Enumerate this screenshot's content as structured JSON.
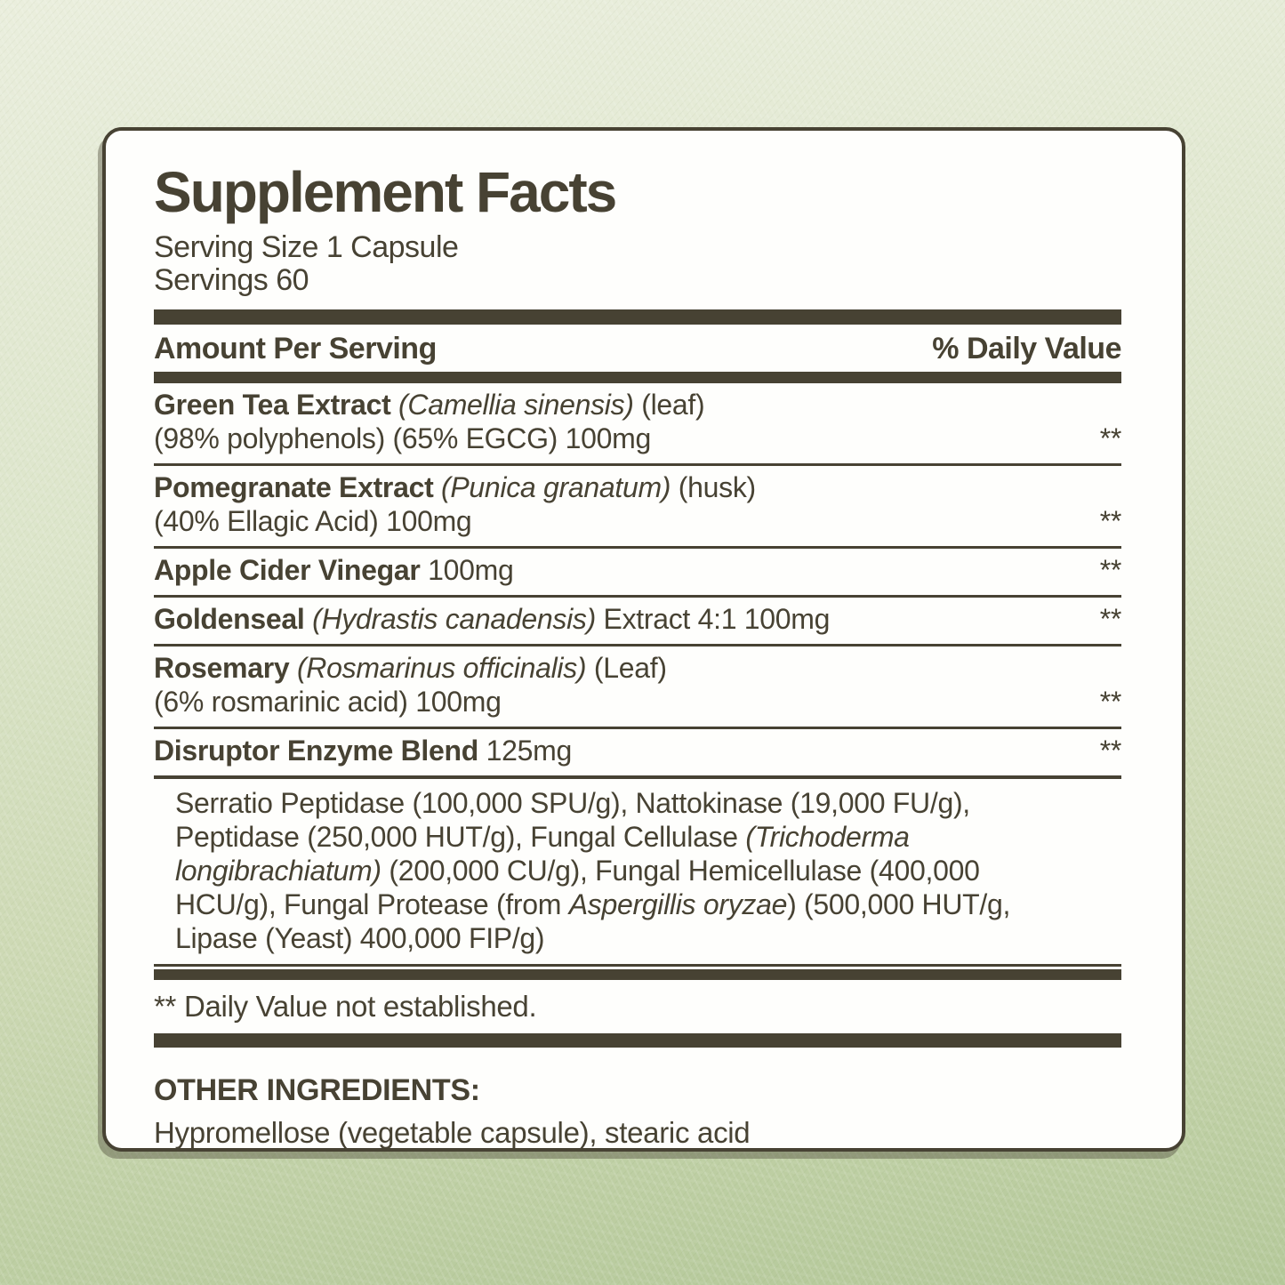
{
  "colors": {
    "ink": "#474233",
    "card_background": "#fefefc",
    "background_top": "#eaeedd",
    "background_bottom": "#b4c899"
  },
  "panel": {
    "title": "Supplement Facts",
    "serving_size": "Serving Size 1 Capsule",
    "servings": "Servings 60",
    "header": {
      "left": "Amount Per Serving",
      "right": "% Daily Value"
    },
    "rows": [
      {
        "lines": [
          {
            "segments": [
              {
                "t": "Green Tea Extract ",
                "b": true
              },
              {
                "t": "(Camellia sinensis)",
                "i": true
              },
              {
                "t": " (leaf)"
              }
            ]
          },
          {
            "segments": [
              {
                "t": "(98% polyphenols) (65% EGCG) 100mg"
              }
            ],
            "dv": "**"
          }
        ]
      },
      {
        "lines": [
          {
            "segments": [
              {
                "t": "Pomegranate Extract ",
                "b": true
              },
              {
                "t": "(Punica granatum)",
                "i": true
              },
              {
                "t": " (husk)"
              }
            ]
          },
          {
            "segments": [
              {
                "t": "(40% Ellagic Acid) 100mg"
              }
            ],
            "dv": "**"
          }
        ]
      },
      {
        "lines": [
          {
            "segments": [
              {
                "t": "Apple Cider Vinegar ",
                "b": true
              },
              {
                "t": "100mg"
              }
            ],
            "dv": "**"
          }
        ]
      },
      {
        "lines": [
          {
            "segments": [
              {
                "t": "Goldenseal ",
                "b": true
              },
              {
                "t": "(Hydrastis canadensis)",
                "i": true
              },
              {
                "t": " Extract 4:1 100mg"
              }
            ],
            "dv": "**"
          }
        ]
      },
      {
        "lines": [
          {
            "segments": [
              {
                "t": "Rosemary ",
                "b": true
              },
              {
                "t": "(Rosmarinus officinalis)",
                "i": true
              },
              {
                "t": "  (Leaf)"
              }
            ]
          },
          {
            "segments": [
              {
                "t": "(6% rosmarinic acid) 100mg"
              }
            ],
            "dv": "**"
          }
        ]
      },
      {
        "lines": [
          {
            "segments": [
              {
                "t": "Disruptor Enzyme Blend ",
                "b": true
              },
              {
                "t": "125mg"
              }
            ],
            "dv": "**"
          }
        ]
      }
    ],
    "blend_description": {
      "segments": [
        {
          "t": "Serratio Peptidase (100,000 SPU/g), Nattokinase (19,000 FU/g), Peptidase (250,000 HUT/g), Fungal Cellulase "
        },
        {
          "t": "(Trichoderma longibrachiatum)",
          "i": true
        },
        {
          "t": " (200,000 CU/g), Fungal Hemicellulase (400,000 HCU/g), Fungal Protease (from "
        },
        {
          "t": "Aspergillis oryzae",
          "i": true
        },
        {
          "t": ") (500,000 HUT/g, Lipase (Yeast) 400,000 FIP/g)"
        }
      ]
    },
    "footnote": "** Daily Value not established.",
    "other_ingredients_label": "OTHER INGREDIENTS:",
    "other_ingredients": "Hypromellose (vegetable capsule), stearic acid"
  }
}
